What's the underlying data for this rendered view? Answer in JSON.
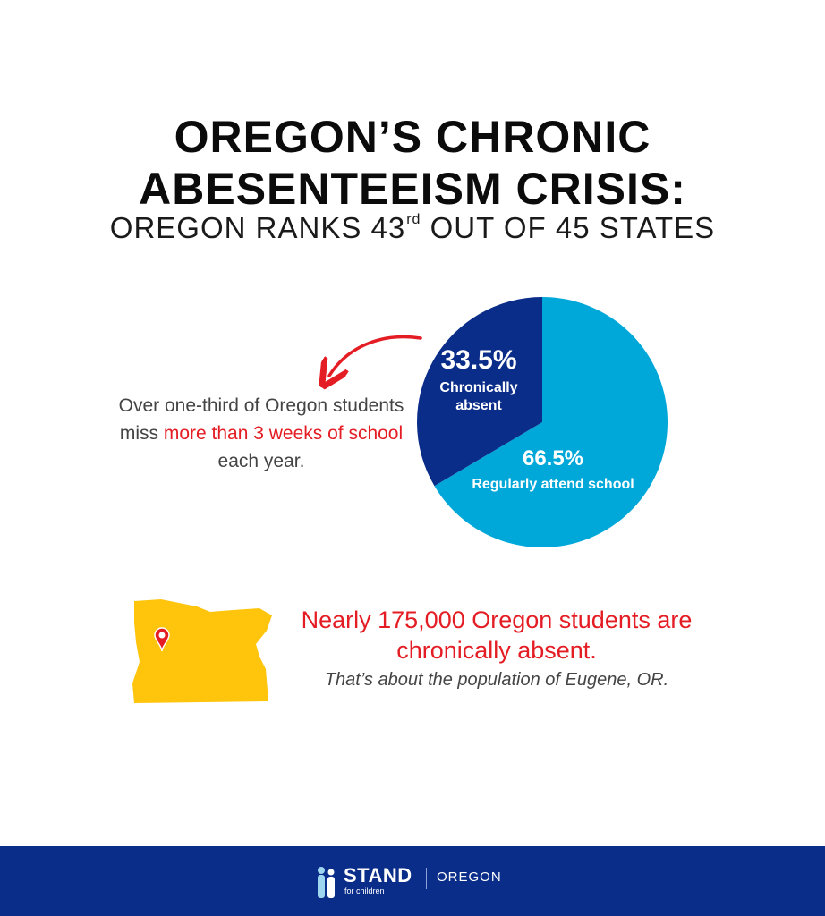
{
  "header": {
    "title_line1": "OREGON’S CHRONIC",
    "title_line2": "ABESENTEEISM CRISIS:",
    "subtitle_pre": "OREGON RANKS 43",
    "subtitle_sup": "rd",
    "subtitle_post": " OUT OF 45 STATES"
  },
  "callout": {
    "part1": "Over one-third of Oregon students miss ",
    "highlight": "more than 3 weeks of school",
    "part2": " each year."
  },
  "chart_data": {
    "type": "pie",
    "slices": [
      {
        "label": "Chronically absent",
        "value": 33.5,
        "value_label": "33.5%",
        "label_lines": [
          "Chronically",
          "absent"
        ],
        "color": "#0b2d8a"
      },
      {
        "label": "Regularly attend school",
        "value": 66.5,
        "value_label": "66.5%",
        "label_lines": [
          "Regularly attend school"
        ],
        "color": "#00a8d9"
      }
    ]
  },
  "colors": {
    "accent_red": "#e41d24",
    "navy": "#0b2d8a",
    "cyan": "#00a8d9",
    "map_yellow": "#ffc40c"
  },
  "stat": {
    "headline": "Nearly 175,000 Oregon students are chronically absent.",
    "note": "That’s about the population of Eugene, OR."
  },
  "footer": {
    "brand": "STAND",
    "brand_sub": "for children",
    "region": "OREGON"
  }
}
